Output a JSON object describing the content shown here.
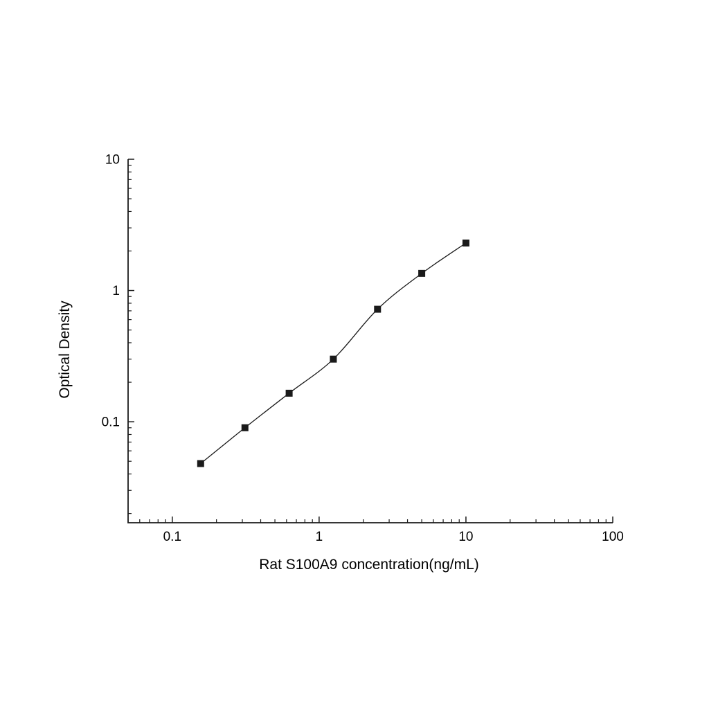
{
  "chart_data": {
    "type": "scatter",
    "subtype": "log-log standard curve with smooth fit line",
    "title": "",
    "xlabel": "Rat S100A9 concentration(ng/mL)",
    "ylabel": "Optical Density",
    "xscale": "log",
    "yscale": "log",
    "xlim": [
      0.05,
      100
    ],
    "ylim": [
      0.017,
      10
    ],
    "x_ticks": [
      0.1,
      1,
      10,
      100
    ],
    "x_tick_labels": [
      "0.1",
      "1",
      "10",
      "100"
    ],
    "y_ticks": [
      0.1,
      1,
      10
    ],
    "y_tick_labels": [
      "0.1",
      "1",
      "10"
    ],
    "grid": false,
    "legend": "none",
    "marker": "square",
    "line": "smooth",
    "color": "#1a1a1a",
    "x": [
      0.156,
      0.3125,
      0.625,
      1.25,
      2.5,
      5,
      10
    ],
    "y": [
      0.048,
      0.09,
      0.165,
      0.3,
      0.72,
      1.35,
      2.3
    ]
  }
}
